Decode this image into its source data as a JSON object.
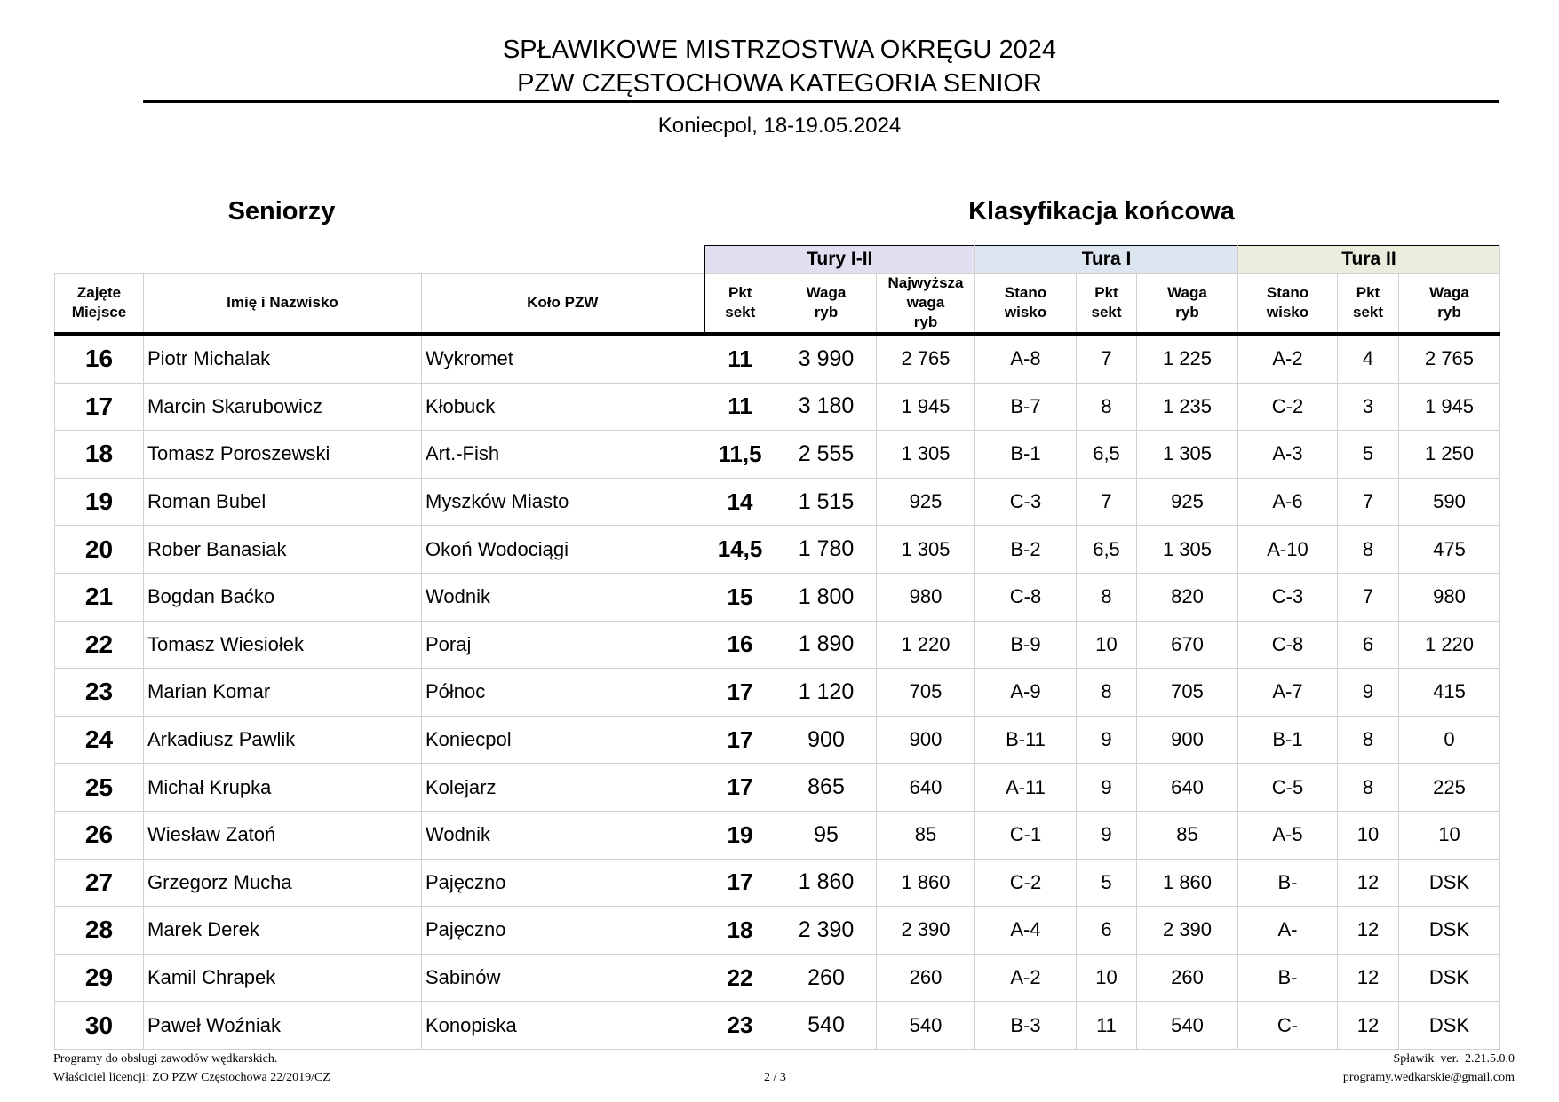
{
  "header": {
    "title_line1": "SPŁAWIKOWE MISTRZOSTWA OKRĘGU 2024",
    "title_line2": "PZW CZĘSTOCHOWA KATEGORIA SENIOR",
    "subtitle": "Koniecpol, 18-19.05.2024"
  },
  "section_left": "Seniorzy",
  "section_right": "Klasyfikacja końcowa",
  "groups": {
    "tury": "Tury I-II",
    "tura1": "Tura I",
    "tura2": "Tura II",
    "colors": {
      "tury": "#e4dff0",
      "tura1": "#dde6f0",
      "tura2": "#e9eedc"
    }
  },
  "columns": [
    "Zajęte Miejsce",
    "Imię i Nazwisko",
    "Koło PZW",
    "Pkt sekt",
    "Waga ryb",
    "Najwyższa waga ryb",
    "Stano wisko",
    "Pkt sekt",
    "Waga ryb",
    "Stano wisko",
    "Pkt sekt",
    "Waga ryb"
  ],
  "rows": [
    [
      "16",
      "Piotr Michalak",
      "Wykromet",
      "11",
      "3 990",
      "2 765",
      "A-8",
      "7",
      "1 225",
      "A-2",
      "4",
      "2 765"
    ],
    [
      "17",
      "Marcin Skarubowicz",
      "Kłobuck",
      "11",
      "3 180",
      "1 945",
      "B-7",
      "8",
      "1 235",
      "C-2",
      "3",
      "1 945"
    ],
    [
      "18",
      "Tomasz Poroszewski",
      "Art.-Fish",
      "11,5",
      "2 555",
      "1 305",
      "B-1",
      "6,5",
      "1 305",
      "A-3",
      "5",
      "1 250"
    ],
    [
      "19",
      "Roman Bubel",
      "Myszków Miasto",
      "14",
      "1 515",
      "925",
      "C-3",
      "7",
      "925",
      "A-6",
      "7",
      "590"
    ],
    [
      "20",
      "Rober Banasiak",
      "Okoń Wodociągi",
      "14,5",
      "1 780",
      "1 305",
      "B-2",
      "6,5",
      "1 305",
      "A-10",
      "8",
      "475"
    ],
    [
      "21",
      "Bogdan Baćko",
      "Wodnik",
      "15",
      "1 800",
      "980",
      "C-8",
      "8",
      "820",
      "C-3",
      "7",
      "980"
    ],
    [
      "22",
      "Tomasz Wiesiołek",
      "Poraj",
      "16",
      "1 890",
      "1 220",
      "B-9",
      "10",
      "670",
      "C-8",
      "6",
      "1 220"
    ],
    [
      "23",
      "Marian Komar",
      "Północ",
      "17",
      "1 120",
      "705",
      "A-9",
      "8",
      "705",
      "A-7",
      "9",
      "415"
    ],
    [
      "24",
      "Arkadiusz Pawlik",
      "Koniecpol",
      "17",
      "900",
      "900",
      "B-11",
      "9",
      "900",
      "B-1",
      "8",
      "0"
    ],
    [
      "25",
      "Michał Krupka",
      "Kolejarz",
      "17",
      "865",
      "640",
      "A-11",
      "9",
      "640",
      "C-5",
      "8",
      "225"
    ],
    [
      "26",
      "Wiesław Zatoń",
      "Wodnik",
      "19",
      "95",
      "85",
      "C-1",
      "9",
      "85",
      "A-5",
      "10",
      "10"
    ],
    [
      "27",
      "Grzegorz Mucha",
      "Pajęczno",
      "17",
      "1 860",
      "1 860",
      "C-2",
      "5",
      "1 860",
      "B-",
      "12",
      "DSK"
    ],
    [
      "28",
      "Marek Derek",
      "Pajęczno",
      "18",
      "2 390",
      "2 390",
      "A-4",
      "6",
      "2 390",
      "A-",
      "12",
      "DSK"
    ],
    [
      "29",
      "Kamil Chrapek",
      "Sabinów",
      "22",
      "260",
      "260",
      "A-2",
      "10",
      "260",
      "B-",
      "12",
      "DSK"
    ],
    [
      "30",
      "Paweł Woźniak",
      "Konopiska",
      "23",
      "540",
      "540",
      "B-3",
      "11",
      "540",
      "C-",
      "12",
      "DSK"
    ]
  ],
  "footer": {
    "left1": "Programy do obsługi zawodów wędkarskich.",
    "left2": "Właściciel licencji: ZO PZW Częstochowa 22/2019/CZ",
    "page": "2 / 3",
    "right1": "Spławik  ver.  2.21.5.0.0",
    "right2": "programy.wedkarskie@gmail.com"
  }
}
